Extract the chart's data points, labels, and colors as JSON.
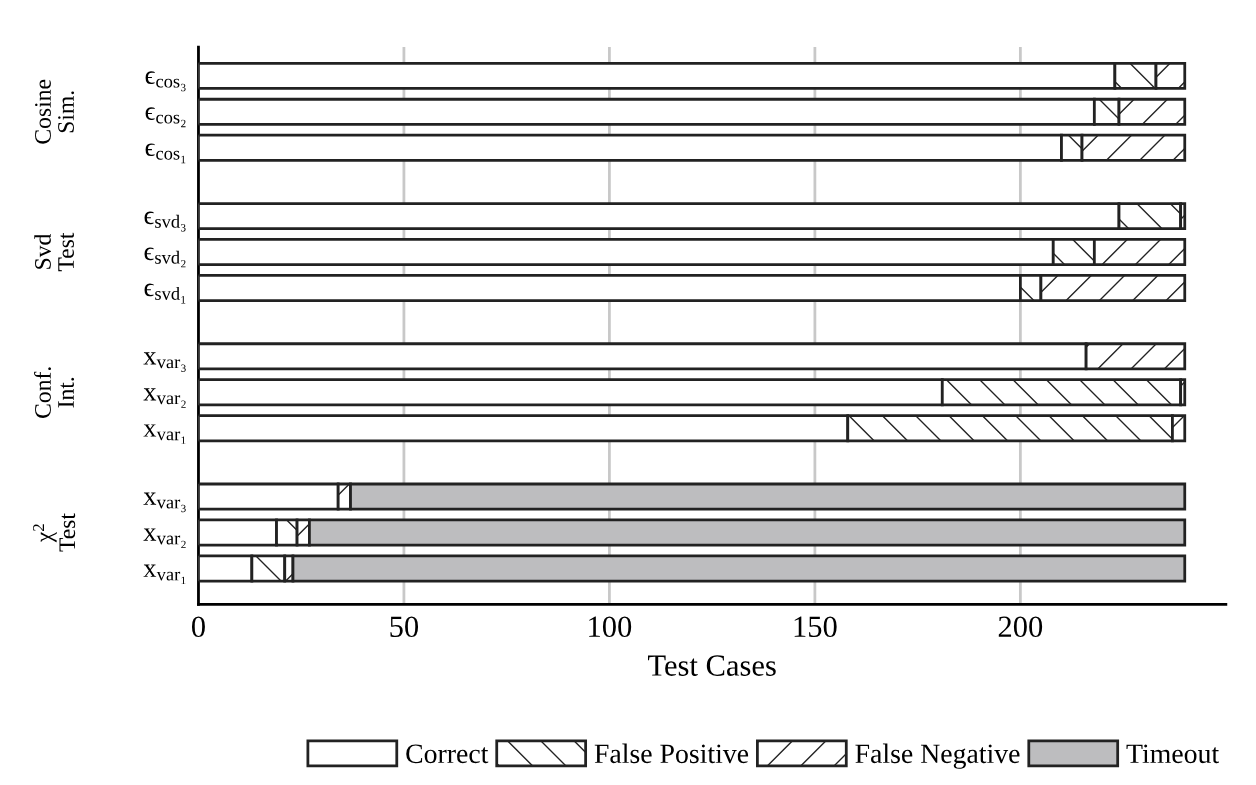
{
  "chart_data": {
    "type": "bar",
    "orientation": "horizontal",
    "stacked": true,
    "xlabel": "Test Cases",
    "categories": [
      "ϵ$_{cos₃}$",
      "ϵ$_{cos₂}$",
      "ϵ$_{cos₁}$",
      "ϵ$_{svd₃}$",
      "ϵ$_{svd₂}$",
      "ϵ$_{svd₁}$",
      "x$_{var₃}$",
      "x$_{var₂}$",
      "x$_{var₁}$",
      "x$_{var₃}$",
      "x$_{var₂}$",
      "x$_{var₁}$"
    ],
    "series": [
      {
        "name": "Correct",
        "color": "#ffffff",
        "values": [
          223,
          218,
          210,
          224,
          208,
          200,
          216,
          181,
          158,
          34,
          19,
          13
        ]
      },
      {
        "name": "False Positive",
        "color": "#222222",
        "values": [
          10,
          6,
          5,
          15,
          10,
          5,
          0,
          58,
          79,
          0,
          5,
          8
        ]
      },
      {
        "name": "False Negative",
        "color": "#222222",
        "values": [
          7,
          16,
          25,
          1,
          22,
          35,
          24,
          1,
          3,
          3,
          3,
          2
        ]
      },
      {
        "name": "Timeout",
        "color": "#bdbdbf",
        "values": [
          0,
          0,
          0,
          0,
          0,
          0,
          0,
          0,
          0,
          203,
          213,
          217
        ]
      }
    ],
    "annotations": [
      "Cosine\nSim.",
      "Svd\nTest",
      "Conf.\nInt.",
      "χ$^{2}$\nTest"
    ],
    "xlim": [
      0,
      250
    ],
    "xticks": [
      0,
      50,
      100,
      150,
      200
    ],
    "grid": "x",
    "legend": "bottom"
  }
}
